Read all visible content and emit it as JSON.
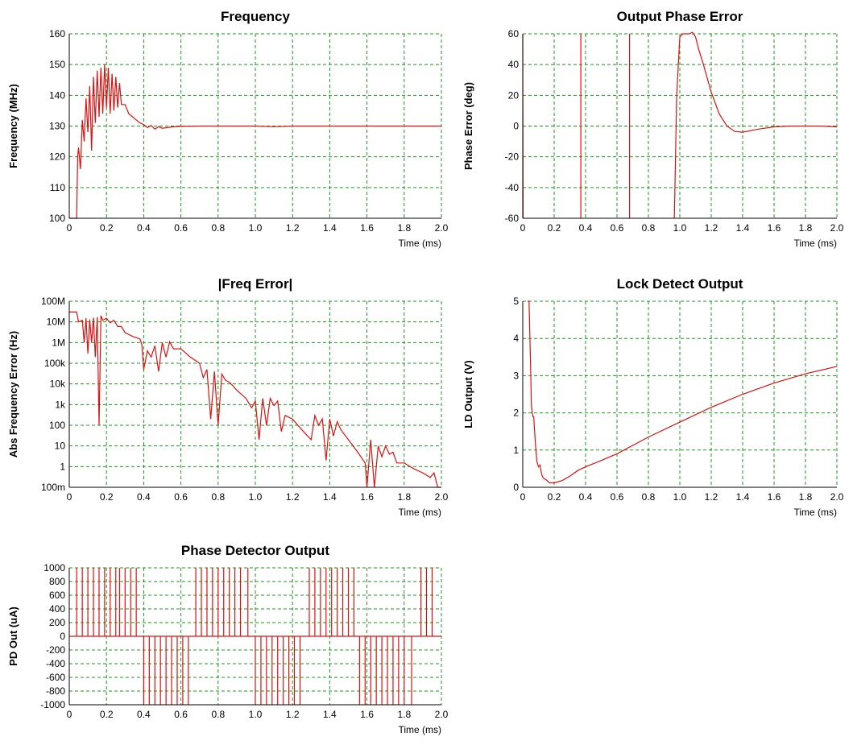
{
  "colors": {
    "series": "#e01010",
    "grid": "#1a9a1a",
    "frame": "#000000"
  },
  "chart_data": [
    {
      "id": "frequency",
      "type": "line",
      "title": "Frequency",
      "xlabel": "Time (ms)",
      "ylabel": "Frequency (MHz)",
      "xlim": [
        0,
        2.0
      ],
      "ylim": [
        100,
        160
      ],
      "grid": true,
      "xticks": [
        0,
        0.2,
        0.4,
        0.6,
        0.8,
        1.0,
        1.2,
        1.4,
        1.6,
        1.8,
        2.0
      ],
      "xtick_labels": [
        "0",
        "0.2",
        "0.4",
        "0.6",
        "0.8",
        "1.0",
        "1.2",
        "1.4",
        "1.6",
        "1.8",
        "2.0"
      ],
      "yticks": [
        100,
        110,
        120,
        130,
        140,
        150,
        160
      ],
      "ytick_labels": [
        "100",
        "110",
        "120",
        "130",
        "140",
        "150",
        "160"
      ],
      "series": [
        {
          "x": [
            0,
            0.04,
            0.045,
            0.05,
            0.06,
            0.07,
            0.08,
            0.09,
            0.1,
            0.11,
            0.12,
            0.13,
            0.14,
            0.15,
            0.16,
            0.17,
            0.18,
            0.19,
            0.2,
            0.21,
            0.22,
            0.23,
            0.24,
            0.25,
            0.26,
            0.27,
            0.28,
            0.3,
            0.32,
            0.34,
            0.36,
            0.38,
            0.4,
            0.42,
            0.44,
            0.46,
            0.48,
            0.5,
            0.55,
            0.6,
            0.7,
            0.8,
            0.9,
            1.0,
            1.1,
            1.2,
            1.3,
            1.4,
            1.5,
            1.6,
            1.7,
            1.8,
            1.9,
            2.0
          ],
          "y": [
            100,
            100,
            120,
            123,
            116,
            132,
            125,
            139,
            128,
            143,
            122,
            146,
            131,
            148,
            133,
            149,
            134,
            150,
            136,
            149,
            134,
            147,
            135,
            146,
            136,
            144,
            137,
            137,
            134,
            133,
            132,
            131,
            130.5,
            129.5,
            130.2,
            129,
            129.8,
            129.3,
            129.7,
            129.9,
            130,
            130,
            130,
            130,
            129.8,
            130,
            130,
            130,
            130,
            130,
            130,
            130,
            130,
            130
          ]
        }
      ]
    },
    {
      "id": "phase-error",
      "type": "line",
      "title": "Output Phase Error",
      "xlabel": "Time (ms)",
      "ylabel": "Phase Error (deg)",
      "xlim": [
        0,
        2.0
      ],
      "ylim": [
        -60,
        60
      ],
      "grid": true,
      "xticks": [
        0,
        0.2,
        0.4,
        0.6,
        0.8,
        1.0,
        1.2,
        1.4,
        1.6,
        1.8,
        2.0
      ],
      "xtick_labels": [
        "0",
        "0.2",
        "0.4",
        "0.6",
        "0.8",
        "1.0",
        "1.2",
        "1.4",
        "1.6",
        "1.8",
        "2.0"
      ],
      "yticks": [
        -60,
        -40,
        -20,
        0,
        20,
        40,
        60
      ],
      "ytick_labels": [
        "-60",
        "-40",
        "-20",
        "0",
        "20",
        "40",
        "60"
      ],
      "series": [
        {
          "x": [
            0,
            0.002,
            null,
            0.37,
            0.37,
            null,
            0.68,
            0.68,
            null,
            0.965,
            0.98,
            1.0,
            1.02,
            1.04,
            1.06,
            1.08,
            1.1,
            1.12,
            1.15,
            1.2,
            1.25,
            1.3,
            1.35,
            1.4,
            1.5,
            1.6,
            1.7,
            1.8,
            1.9,
            2.0
          ],
          "y": [
            60,
            -60,
            null,
            60,
            -60,
            null,
            60,
            -60,
            null,
            -60,
            20,
            58,
            60,
            60,
            60,
            61,
            58,
            50,
            40,
            22,
            8,
            0,
            -3.5,
            -4,
            -2,
            -0.5,
            0,
            0,
            0,
            -0.5
          ]
        }
      ]
    },
    {
      "id": "freq-error",
      "type": "line",
      "title": "|Freq Error|",
      "xlabel": "Time (ms)",
      "ylabel": "Abs Frequency Error (Hz)",
      "xlim": [
        0,
        2.0
      ],
      "ylim": [
        0.1,
        100000000
      ],
      "yscale": "log",
      "grid": true,
      "xticks": [
        0,
        0.2,
        0.4,
        0.6,
        0.8,
        1.0,
        1.2,
        1.4,
        1.6,
        1.8,
        2.0
      ],
      "xtick_labels": [
        "0",
        "0.2",
        "0.4",
        "0.6",
        "0.8",
        "1.0",
        "1.2",
        "1.4",
        "1.6",
        "1.8",
        "2.0"
      ],
      "yticks": [
        0.1,
        1,
        10,
        100,
        1000,
        10000,
        100000,
        1000000,
        10000000,
        100000000
      ],
      "ytick_labels": [
        "100m",
        "1",
        "10",
        "100",
        "1k",
        "10k",
        "100k",
        "1M",
        "10M",
        "100M"
      ],
      "series": [
        {
          "x": [
            0,
            0.04,
            0.05,
            0.07,
            0.08,
            0.09,
            0.1,
            0.11,
            0.12,
            0.13,
            0.14,
            0.15,
            0.16,
            0.17,
            0.18,
            0.2,
            0.22,
            0.24,
            0.26,
            0.28,
            0.3,
            0.34,
            0.38,
            0.39,
            0.4,
            0.42,
            0.44,
            0.46,
            0.48,
            0.5,
            0.52,
            0.54,
            0.56,
            0.6,
            0.65,
            0.7,
            0.72,
            0.74,
            0.76,
            0.78,
            0.8,
            0.82,
            0.84,
            0.86,
            0.88,
            0.9,
            0.95,
            0.98,
            1.0,
            1.02,
            1.04,
            1.06,
            1.08,
            1.1,
            1.12,
            1.14,
            1.16,
            1.2,
            1.25,
            1.3,
            1.32,
            1.34,
            1.36,
            1.38,
            1.4,
            1.42,
            1.44,
            1.46,
            1.5,
            1.55,
            1.59,
            1.6,
            1.62,
            1.64,
            1.66,
            1.68,
            1.7,
            1.72,
            1.74,
            1.76,
            1.8,
            1.85,
            1.9,
            1.94,
            1.96,
            1.98,
            2.0
          ],
          "y": [
            30000000,
            30000000,
            10000000,
            12000000,
            1000000,
            15000000,
            300000,
            13000000,
            1000000,
            16000000,
            200000,
            17000000,
            100,
            20000000,
            12000000,
            15000000,
            9000000,
            12000000,
            6000000,
            6000000,
            3000000,
            2000000,
            1500000,
            800000,
            50000,
            400000,
            200000,
            700000,
            40000,
            1000000,
            200000,
            1100000,
            500000,
            500000,
            200000,
            100000,
            20000,
            50000,
            200,
            40000,
            100,
            30000,
            15000,
            12000,
            8000,
            5000,
            2000,
            700,
            1500,
            20,
            2000,
            100,
            2000,
            900,
            1500,
            50,
            300,
            200,
            60,
            20,
            300,
            100,
            200,
            2,
            200,
            30,
            150,
            60,
            20,
            5,
            1.5,
            0.1,
            20,
            0.1,
            10,
            3,
            10,
            4,
            5,
            1.5,
            1.5,
            0.8,
            0.5,
            0.3,
            0.5,
            0.1,
            0.1
          ]
        }
      ]
    },
    {
      "id": "lock-detect",
      "type": "line",
      "title": "Lock Detect Output",
      "xlabel": "Time (ms)",
      "ylabel": "LD Output (V)",
      "xlim": [
        0,
        2.0
      ],
      "ylim": [
        0,
        5
      ],
      "grid": true,
      "xticks": [
        0,
        0.2,
        0.4,
        0.6,
        0.8,
        1.0,
        1.2,
        1.4,
        1.6,
        1.8,
        2.0
      ],
      "xtick_labels": [
        "0",
        "0.2",
        "0.4",
        "0.6",
        "0.8",
        "1.0",
        "1.2",
        "1.4",
        "1.6",
        "1.8",
        "2.0"
      ],
      "yticks": [
        0,
        1,
        2,
        3,
        4,
        5
      ],
      "ytick_labels": [
        "0",
        "1",
        "2",
        "3",
        "4",
        "5"
      ],
      "series": [
        {
          "x": [
            0.03,
            0.04,
            0.05,
            0.055,
            0.06,
            0.065,
            0.07,
            0.08,
            0.09,
            0.1,
            0.11,
            0.12,
            0.13,
            0.15,
            0.17,
            0.2,
            0.25,
            0.3,
            0.35,
            0.4,
            0.5,
            0.6,
            0.8,
            1.0,
            1.2,
            1.4,
            1.6,
            1.8,
            2.0
          ],
          "y": [
            5,
            5,
            3.2,
            2.2,
            2.0,
            1.9,
            1.9,
            1.2,
            0.7,
            0.55,
            0.6,
            0.35,
            0.25,
            0.2,
            0.12,
            0.12,
            0.18,
            0.3,
            0.45,
            0.55,
            0.72,
            0.9,
            1.35,
            1.75,
            2.15,
            2.5,
            2.8,
            3.05,
            3.25
          ]
        }
      ]
    },
    {
      "id": "pd-output",
      "type": "line",
      "title": "Phase Detector Output",
      "xlabel": "Time (ms)",
      "ylabel": "PD Out (uA)",
      "xlim": [
        0,
        2.0
      ],
      "ylim": [
        -1000,
        1000
      ],
      "grid": true,
      "xticks": [
        0,
        0.2,
        0.4,
        0.6,
        0.8,
        1.0,
        1.2,
        1.4,
        1.6,
        1.8,
        2.0
      ],
      "xtick_labels": [
        "0",
        "0.2",
        "0.4",
        "0.6",
        "0.8",
        "1.0",
        "1.2",
        "1.4",
        "1.6",
        "1.8",
        "2.0"
      ],
      "yticks": [
        -1000,
        -800,
        -600,
        -400,
        -200,
        0,
        200,
        400,
        600,
        800,
        1000
      ],
      "ytick_labels": [
        "-1000",
        "-800",
        "-600",
        "-400",
        "-200",
        "0",
        "200",
        "400",
        "600",
        "800",
        "1000"
      ],
      "pulses_x": [
        0.04,
        0.07,
        0.1,
        0.13,
        0.16,
        0.19,
        0.22,
        0.25,
        0.27,
        0.3,
        0.33,
        0.36,
        0.4,
        0.43,
        0.46,
        0.49,
        0.52,
        0.55,
        0.58,
        0.61,
        0.64,
        0.68,
        0.71,
        0.74,
        0.77,
        0.8,
        0.83,
        0.86,
        0.89,
        0.92,
        0.96,
        1.0,
        1.03,
        1.06,
        1.09,
        1.12,
        1.15,
        1.18,
        1.21,
        1.24,
        1.29,
        1.32,
        1.35,
        1.38,
        1.41,
        1.44,
        1.47,
        1.5,
        1.53,
        1.56,
        1.59,
        1.62,
        1.65,
        1.68,
        1.71,
        1.74,
        1.77,
        1.8,
        1.84,
        1.89,
        1.92,
        1.95
      ],
      "pulses_y": [
        1000,
        1000,
        1000,
        1000,
        1000,
        1000,
        1000,
        1000,
        1000,
        1000,
        1000,
        1000,
        -1000,
        -1000,
        -1000,
        -1000,
        -1000,
        -1000,
        -1000,
        -1000,
        -1000,
        1000,
        1000,
        1000,
        1000,
        1000,
        1000,
        1000,
        1000,
        1000,
        1000,
        -1000,
        -1000,
        -1000,
        -1000,
        -1000,
        -1000,
        -1000,
        -1000,
        -1000,
        1000,
        1000,
        1000,
        1000,
        1000,
        1000,
        1000,
        1000,
        1000,
        -1000,
        -1000,
        -1000,
        -1000,
        -1000,
        -1000,
        -1000,
        -1000,
        -1000,
        -1000,
        1000,
        1000,
        1000
      ]
    }
  ]
}
